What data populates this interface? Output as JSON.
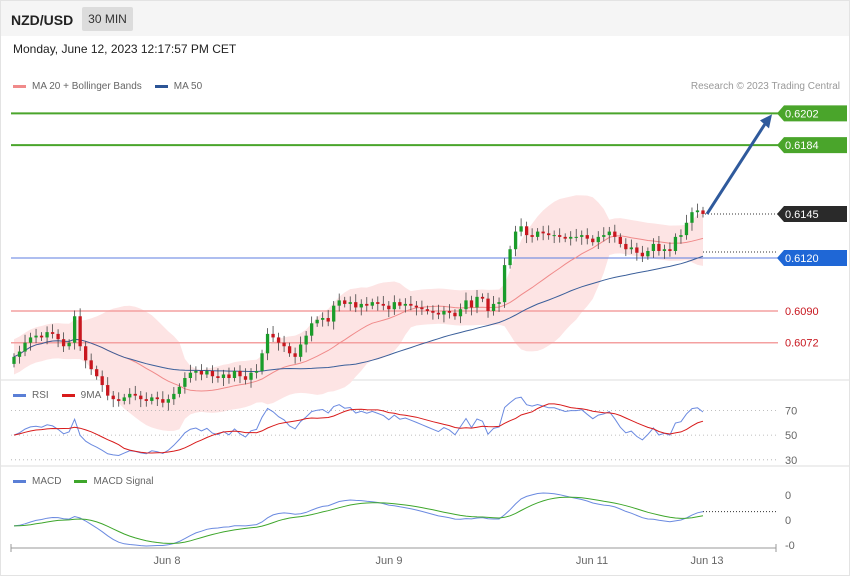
{
  "header": {
    "symbol": "NZD/USD",
    "timeframe": "30 MIN"
  },
  "datetime": "Monday, June 12, 2023 12:17:57 PM CET",
  "copyright": "Research © 2023 Trading Central",
  "colors": {
    "up": "#1a9c2a",
    "down": "#c8171f",
    "bb_fill": "#fde4e4",
    "ma20": "#f08a8a",
    "ma50": "#3b5f9a",
    "resistance": "#4aa52b",
    "support_red": "#f4a0a0",
    "pivot_blue": "#1f67d6",
    "arrow": "#2f5a9c",
    "rsi": "#6b8ae0",
    "rsi_ma": "#d81b1b",
    "macd": "#6b8ae0",
    "macd_signal": "#3ea62b"
  },
  "legends": {
    "price": [
      {
        "label": "MA 20 + Bollinger Bands",
        "color": "#f08a8a"
      },
      {
        "label": "MA 50",
        "color": "#2c5596"
      }
    ],
    "rsi": [
      {
        "label": "RSI",
        "color": "#5a7fd6"
      },
      {
        "label": "9MA",
        "color": "#d81b1b"
      }
    ],
    "macd": [
      {
        "label": "MACD",
        "color": "#5a7fd6"
      },
      {
        "label": "MACD Signal",
        "color": "#3ea62b"
      }
    ]
  },
  "chart_data": [
    {
      "type": "candlestick",
      "title": "NZD/USD 30 MIN",
      "ylim": [
        0.6052,
        0.6213
      ],
      "x_labels": [
        "Jun 8",
        "Jun 9",
        "Jun 11",
        "Jun 13"
      ],
      "last_price": 0.6145,
      "levels": [
        {
          "value": 0.6202,
          "label": "0.6202",
          "kind": "resistance"
        },
        {
          "value": 0.6184,
          "label": "0.6184",
          "kind": "resistance"
        },
        {
          "value": 0.6145,
          "label": "0.6145",
          "kind": "last"
        },
        {
          "value": 0.612,
          "label": "0.6120",
          "kind": "pivot"
        },
        {
          "value": 0.609,
          "label": "0.6090",
          "kind": "support"
        },
        {
          "value": 0.6072,
          "label": "0.6072",
          "kind": "support"
        }
      ],
      "forecast_arrow": {
        "from": 0.6145,
        "to": 0.6202
      },
      "close": [
        0.6064,
        0.6067,
        0.6072,
        0.6075,
        0.6076,
        0.6075,
        0.6078,
        0.6077,
        0.6074,
        0.607,
        0.6072,
        0.6087,
        0.607,
        0.6062,
        0.6057,
        0.6053,
        0.6048,
        0.6042,
        0.604,
        0.6039,
        0.6041,
        0.6043,
        0.6042,
        0.604,
        0.6039,
        0.6041,
        0.604,
        0.6038,
        0.604,
        0.6043,
        0.6047,
        0.6052,
        0.6055,
        0.6056,
        0.6054,
        0.6056,
        0.6053,
        0.6052,
        0.6054,
        0.6052,
        0.6056,
        0.6053,
        0.6051,
        0.6055,
        0.6056,
        0.6066,
        0.6077,
        0.6075,
        0.6072,
        0.607,
        0.6066,
        0.6064,
        0.6071,
        0.6076,
        0.6083,
        0.6085,
        0.6086,
        0.6084,
        0.6093,
        0.6096,
        0.6094,
        0.6095,
        0.6092,
        0.6094,
        0.6093,
        0.6095,
        0.6094,
        0.6093,
        0.6091,
        0.6095,
        0.6093,
        0.6094,
        0.6093,
        0.6092,
        0.6091,
        0.609,
        0.6089,
        0.6088,
        0.609,
        0.6089,
        0.6087,
        0.6091,
        0.6096,
        0.6092,
        0.6098,
        0.6097,
        0.609,
        0.6094,
        0.6095,
        0.6116,
        0.6125,
        0.6135,
        0.6138,
        0.6133,
        0.6132,
        0.6135,
        0.6134,
        0.6133,
        0.6133,
        0.6132,
        0.6131,
        0.6132,
        0.6132,
        0.6133,
        0.6131,
        0.6129,
        0.6132,
        0.6133,
        0.6135,
        0.6132,
        0.6128,
        0.6125,
        0.6126,
        0.6123,
        0.6121,
        0.6124,
        0.6128,
        0.6124,
        0.6125,
        0.6124,
        0.6132,
        0.6133,
        0.614,
        0.6146,
        0.6147,
        0.6145
      ],
      "rsi": {
        "ylim": [
          25,
          80
        ],
        "ticks": [
          70,
          50,
          30
        ]
      },
      "macd": {
        "tick_labels": [
          "0",
          "0",
          "-0"
        ]
      }
    }
  ]
}
